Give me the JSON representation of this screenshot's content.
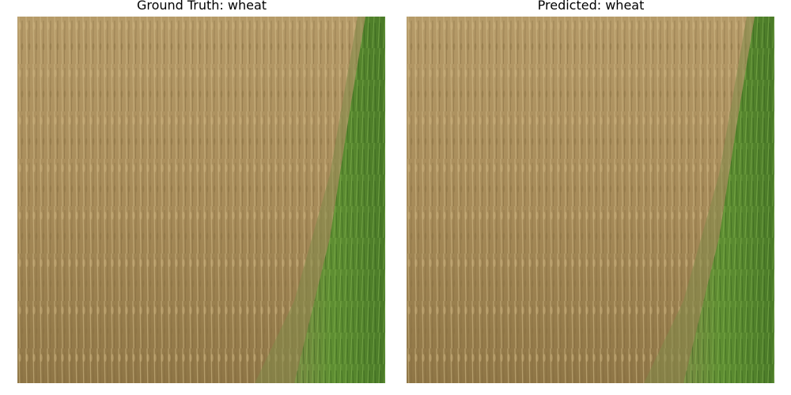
{
  "panels": [
    {
      "title": "Ground Truth: wheat",
      "image_description_name": "wheat-field-image"
    },
    {
      "title": "Predicted: wheat",
      "image_description_name": "wheat-field-image"
    }
  ],
  "colors": {
    "wheat_light": "#b59a68",
    "wheat_mid": "#9c8250",
    "wheat_dark": "#7a6238",
    "grass_light": "#6a9a3c",
    "grass_dark": "#3f6a22"
  }
}
